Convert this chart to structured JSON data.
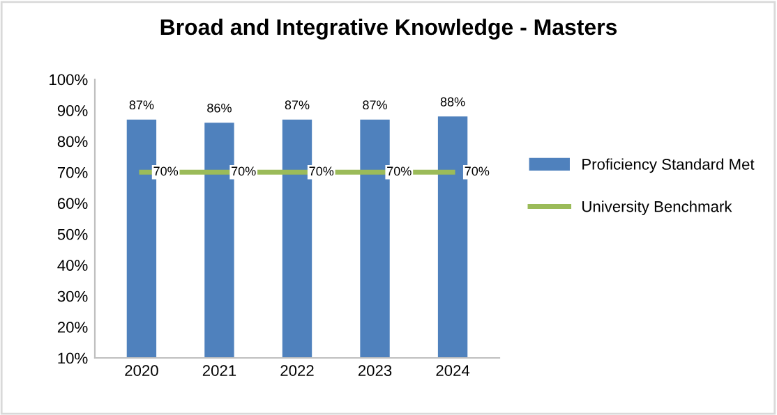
{
  "chart_data": {
    "type": "bar",
    "title": "Broad and Integrative Knowledge - Masters",
    "categories": [
      "2020",
      "2021",
      "2022",
      "2023",
      "2024"
    ],
    "series": [
      {
        "name": "Proficiency Standard Met",
        "color": "#4f81bd",
        "values": [
          87,
          86,
          87,
          87,
          88
        ],
        "value_labels": [
          "87%",
          "86%",
          "87%",
          "87%",
          "88%"
        ]
      },
      {
        "name": "University Benchmark",
        "type": "line",
        "color": "#9bbb59",
        "values": [
          70,
          70,
          70,
          70,
          70
        ],
        "value_labels": [
          "70%",
          "70%",
          "70%",
          "70%",
          "70%"
        ]
      }
    ],
    "ylim": [
      10,
      100
    ],
    "yticks": [
      {
        "value": 10,
        "label": "10%"
      },
      {
        "value": 20,
        "label": "20%"
      },
      {
        "value": 30,
        "label": "30%"
      },
      {
        "value": 40,
        "label": "40%"
      },
      {
        "value": 50,
        "label": "50%"
      },
      {
        "value": 60,
        "label": "60%"
      },
      {
        "value": 70,
        "label": "70%"
      },
      {
        "value": 80,
        "label": "80%"
      },
      {
        "value": 90,
        "label": "90%"
      },
      {
        "value": 100,
        "label": "100%"
      }
    ],
    "grid": false,
    "legend": "right"
  }
}
